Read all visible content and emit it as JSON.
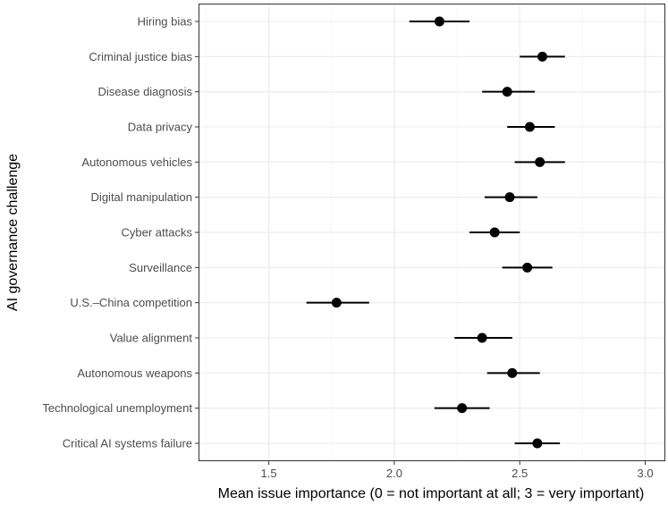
{
  "chart_data": {
    "type": "scatter",
    "subtype": "dot-with-error-bars",
    "orientation": "horizontal",
    "xlabel": "Mean issue importance (0 = not important at all; 3 = very important)",
    "ylabel": "AI governance challenge",
    "xlim": [
      1.22,
      3.08
    ],
    "x_ticks": [
      1.5,
      2.0,
      2.5,
      3.0
    ],
    "x_tick_labels": [
      "1.5",
      "2.0",
      "2.5",
      "3.0"
    ],
    "grid": true,
    "categories": [
      "Hiring bias",
      "Criminal justice bias",
      "Disease diagnosis",
      "Data privacy",
      "Autonomous vehicles",
      "Digital manipulation",
      "Cyber attacks",
      "Surveillance",
      "U.S.–China competition",
      "Value alignment",
      "Autonomous weapons",
      "Technological unemployment",
      "Critical AI systems failure"
    ],
    "means": [
      2.18,
      2.59,
      2.45,
      2.54,
      2.58,
      2.46,
      2.4,
      2.53,
      1.77,
      2.35,
      2.47,
      2.27,
      2.57
    ],
    "lower": [
      2.06,
      2.5,
      2.35,
      2.45,
      2.48,
      2.36,
      2.3,
      2.43,
      1.65,
      2.24,
      2.37,
      2.16,
      2.48
    ],
    "upper": [
      2.3,
      2.68,
      2.56,
      2.64,
      2.68,
      2.57,
      2.5,
      2.63,
      1.9,
      2.47,
      2.58,
      2.38,
      2.66
    ]
  }
}
